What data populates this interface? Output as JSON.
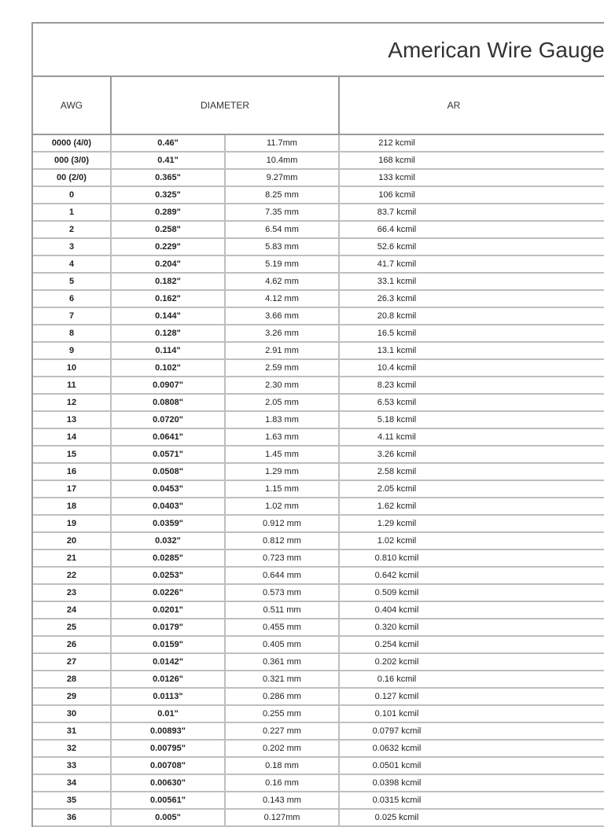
{
  "title": "American Wire Gauge",
  "headers": {
    "awg": "AWG",
    "diameter": "DIAMETER",
    "area": "AR"
  },
  "columns": {
    "awg_width": 100,
    "diameter_width": 290,
    "area_width": 290,
    "inch_width": 145,
    "mm_width": 145,
    "kcmil_width": 145
  },
  "colors": {
    "outer_border": "#999999",
    "grid_border": "#bfbfbf",
    "text": "#222222",
    "title_text": "#333333",
    "background": "#ffffff"
  },
  "fonts": {
    "title_size": 28,
    "header_size": 12,
    "cell_size": 11,
    "family": "Arial"
  },
  "rows": [
    {
      "awg": "0000 (4/0)",
      "inch": "0.46\"",
      "mm": "11.7mm",
      "kcmil": "212 kcmil"
    },
    {
      "awg": "000 (3/0)",
      "inch": "0.41\"",
      "mm": "10.4mm",
      "kcmil": "168 kcmil"
    },
    {
      "awg": "00 (2/0)",
      "inch": "0.365\"",
      "mm": "9.27mm",
      "kcmil": "133 kcmil"
    },
    {
      "awg": "0",
      "inch": "0.325\"",
      "mm": "8.25 mm",
      "kcmil": "106 kcmil"
    },
    {
      "awg": "1",
      "inch": "0.289\"",
      "mm": "7.35 mm",
      "kcmil": "83.7 kcmil"
    },
    {
      "awg": "2",
      "inch": "0.258\"",
      "mm": "6.54 mm",
      "kcmil": "66.4 kcmil"
    },
    {
      "awg": "3",
      "inch": "0.229\"",
      "mm": "5.83 mm",
      "kcmil": "52.6 kcmil"
    },
    {
      "awg": "4",
      "inch": "0.204\"",
      "mm": "5.19 mm",
      "kcmil": "41.7 kcmil"
    },
    {
      "awg": "5",
      "inch": "0.182\"",
      "mm": "4.62 mm",
      "kcmil": "33.1 kcmil"
    },
    {
      "awg": "6",
      "inch": "0.162\"",
      "mm": "4.12 mm",
      "kcmil": "26.3 kcmil"
    },
    {
      "awg": "7",
      "inch": "0.144\"",
      "mm": "3.66 mm",
      "kcmil": "20.8 kcmil"
    },
    {
      "awg": "8",
      "inch": "0.128\"",
      "mm": "3.26 mm",
      "kcmil": "16.5 kcmil"
    },
    {
      "awg": "9",
      "inch": "0.114\"",
      "mm": "2.91 mm",
      "kcmil": "13.1 kcmil"
    },
    {
      "awg": "10",
      "inch": "0.102\"",
      "mm": "2.59 mm",
      "kcmil": "10.4 kcmil"
    },
    {
      "awg": "11",
      "inch": "0.0907\"",
      "mm": "2.30 mm",
      "kcmil": "8.23 kcmil"
    },
    {
      "awg": "12",
      "inch": "0.0808\"",
      "mm": "2.05 mm",
      "kcmil": "6.53 kcmil"
    },
    {
      "awg": "13",
      "inch": "0.0720\"",
      "mm": "1.83 mm",
      "kcmil": "5.18 kcmil"
    },
    {
      "awg": "14",
      "inch": "0.0641\"",
      "mm": "1.63 mm",
      "kcmil": "4.11 kcmil"
    },
    {
      "awg": "15",
      "inch": "0.0571\"",
      "mm": "1.45 mm",
      "kcmil": "3.26 kcmil"
    },
    {
      "awg": "16",
      "inch": "0.0508\"",
      "mm": "1.29 mm",
      "kcmil": "2.58 kcmil"
    },
    {
      "awg": "17",
      "inch": "0.0453\"",
      "mm": "1.15 mm",
      "kcmil": "2.05 kcmil"
    },
    {
      "awg": "18",
      "inch": "0.0403\"",
      "mm": "1.02 mm",
      "kcmil": "1.62 kcmil"
    },
    {
      "awg": "19",
      "inch": "0.0359\"",
      "mm": "0.912 mm",
      "kcmil": "1.29 kcmil"
    },
    {
      "awg": "20",
      "inch": "0.032\"",
      "mm": "0.812 mm",
      "kcmil": "1.02 kcmil"
    },
    {
      "awg": "21",
      "inch": "0.0285\"",
      "mm": "0.723 mm",
      "kcmil": "0.810 kcmil"
    },
    {
      "awg": "22",
      "inch": "0.0253\"",
      "mm": "0.644 mm",
      "kcmil": "0.642 kcmil"
    },
    {
      "awg": "23",
      "inch": "0.0226\"",
      "mm": "0.573 mm",
      "kcmil": "0.509 kcmil"
    },
    {
      "awg": "24",
      "inch": "0.0201\"",
      "mm": "0.511 mm",
      "kcmil": "0.404 kcmil"
    },
    {
      "awg": "25",
      "inch": "0.0179\"",
      "mm": "0.455 mm",
      "kcmil": "0.320 kcmil"
    },
    {
      "awg": "26",
      "inch": "0.0159\"",
      "mm": "0.405 mm",
      "kcmil": "0.254 kcmil"
    },
    {
      "awg": "27",
      "inch": "0.0142\"",
      "mm": "0.361 mm",
      "kcmil": "0.202 kcmil"
    },
    {
      "awg": "28",
      "inch": "0.0126\"",
      "mm": "0.321 mm",
      "kcmil": "0.16 kcmil"
    },
    {
      "awg": "29",
      "inch": "0.0113\"",
      "mm": "0.286 mm",
      "kcmil": "0.127 kcmil"
    },
    {
      "awg": "30",
      "inch": "0.01\"",
      "mm": "0.255 mm",
      "kcmil": "0.101 kcmil"
    },
    {
      "awg": "31",
      "inch": "0.00893\"",
      "mm": "0.227 mm",
      "kcmil": "0.0797 kcmil"
    },
    {
      "awg": "32",
      "inch": "0.00795\"",
      "mm": "0.202 mm",
      "kcmil": "0.0632 kcmil"
    },
    {
      "awg": "33",
      "inch": "0.00708\"",
      "mm": "0.18 mm",
      "kcmil": "0.0501 kcmil"
    },
    {
      "awg": "34",
      "inch": "0.00630\"",
      "mm": "0.16 mm",
      "kcmil": "0.0398 kcmil"
    },
    {
      "awg": "35",
      "inch": "0.00561\"",
      "mm": "0.143 mm",
      "kcmil": "0.0315 kcmil"
    },
    {
      "awg": "36",
      "inch": "0.005\"",
      "mm": "0.127mm",
      "kcmil": "0.025 kcmil"
    }
  ]
}
